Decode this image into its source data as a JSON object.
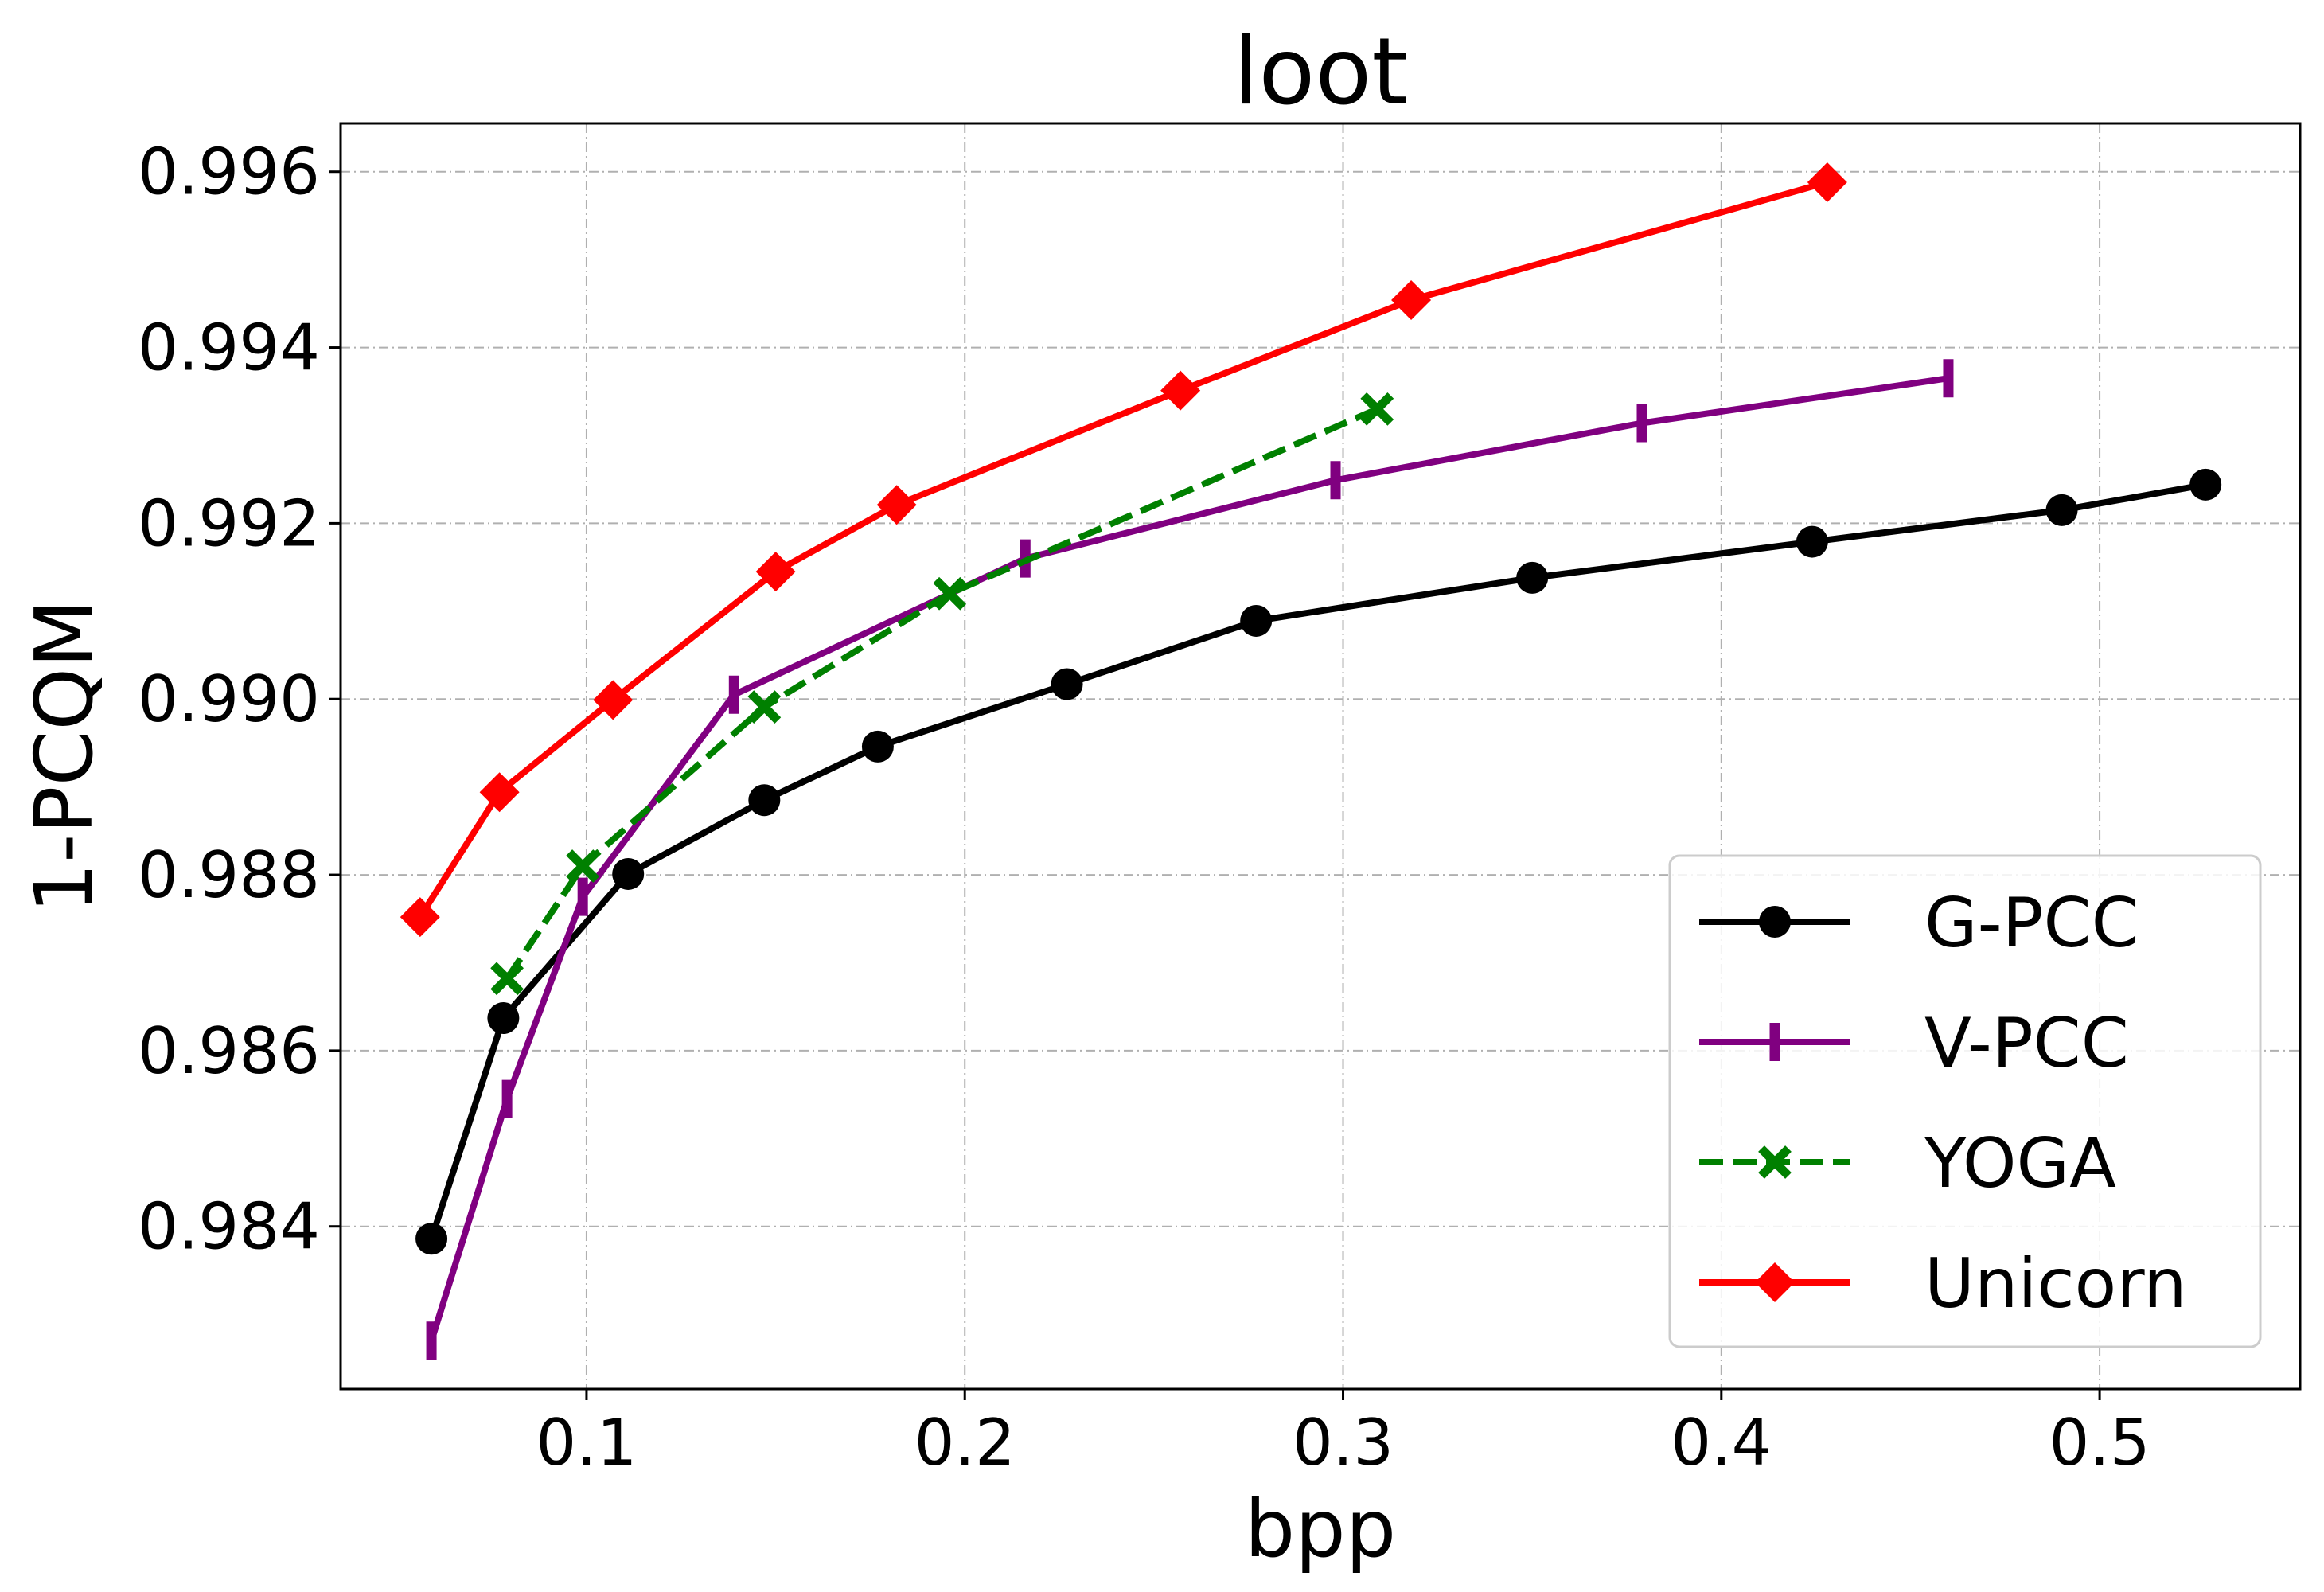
{
  "chart_data": {
    "type": "line",
    "title": "loot",
    "xlabel": "bpp",
    "ylabel": "1-PCQM",
    "xlim": [
      0.035,
      0.553
    ],
    "ylim": [
      0.98215,
      0.99655
    ],
    "xticks": [
      0.1,
      0.2,
      0.3,
      0.4,
      0.5
    ],
    "xtick_labels": [
      "0.1",
      "0.2",
      "0.3",
      "0.4",
      "0.5"
    ],
    "yticks": [
      0.984,
      0.986,
      0.988,
      0.99,
      0.992,
      0.994,
      0.996
    ],
    "ytick_labels": [
      "0.984",
      "0.986",
      "0.988",
      "0.990",
      "0.992",
      "0.994",
      "0.996"
    ],
    "grid": true,
    "legend_position": "lower-right",
    "series": [
      {
        "name": "G-PCC",
        "color": "#000000",
        "marker": "circle",
        "line_style": "solid",
        "x": [
          0.059,
          0.078,
          0.111,
          0.147,
          0.177,
          0.227,
          0.277,
          0.35,
          0.424,
          0.49,
          0.528
        ],
        "y": [
          0.98386,
          0.98637,
          0.98801,
          0.98885,
          0.98946,
          0.99017,
          0.99089,
          0.99138,
          0.99179,
          0.99215,
          0.99244
        ]
      },
      {
        "name": "V-PCC",
        "color": "#800080",
        "marker": "vline",
        "line_style": "solid",
        "x": [
          0.059,
          0.079,
          0.099,
          0.139,
          0.216,
          0.298,
          0.379,
          0.46
        ],
        "y": [
          0.9827,
          0.98545,
          0.98775,
          0.99005,
          0.9916,
          0.99249,
          0.99314,
          0.99365
        ]
      },
      {
        "name": "YOGA",
        "color": "#008000",
        "marker": "x",
        "line_style": "dashed",
        "x": [
          0.079,
          0.099,
          0.147,
          0.196,
          0.309
        ],
        "y": [
          0.98682,
          0.9881,
          0.98991,
          0.9912,
          0.9933
        ]
      },
      {
        "name": "Unicorn",
        "color": "#ff0000",
        "marker": "diamond",
        "line_style": "solid",
        "x": [
          0.056,
          0.077,
          0.107,
          0.15,
          0.182,
          0.257,
          0.318,
          0.428
        ],
        "y": [
          0.98752,
          0.98894,
          0.98999,
          0.99145,
          0.99221,
          0.99351,
          0.99454,
          0.99588
        ]
      }
    ]
  }
}
